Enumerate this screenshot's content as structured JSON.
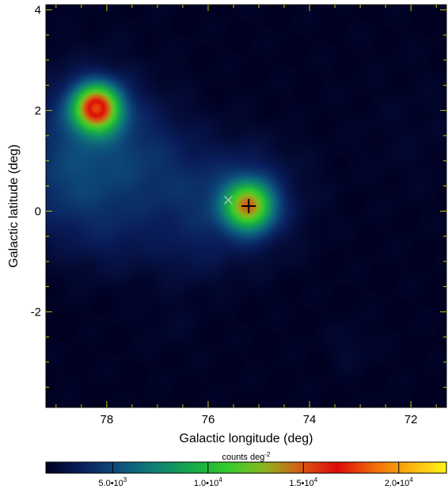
{
  "chart_data": {
    "type": "heatmap",
    "xlabel": "Galactic longitude (deg)",
    "ylabel": "Galactic latitude (deg)",
    "x_ticks": [
      78,
      76,
      74,
      72
    ],
    "x_tick_labels": [
      "78",
      "76",
      "74",
      "72"
    ],
    "y_ticks": [
      4,
      2,
      0,
      -2
    ],
    "y_tick_labels": [
      "4",
      "2",
      "0",
      "-2"
    ],
    "xlim": [
      79.2,
      71.3
    ],
    "ylim": [
      -3.9,
      4.1
    ],
    "grid": false,
    "colorbar": {
      "label": "counts deg",
      "label_exponent": "-2",
      "range": [
        1500,
        22500
      ],
      "ticks": [
        5000,
        10000,
        15000,
        20000
      ],
      "tick_labels": [
        {
          "mantissa": "5.0•10",
          "exponent": "3"
        },
        {
          "mantissa": "1.0•10",
          "exponent": "4"
        },
        {
          "mantissa": "1.5•10",
          "exponent": "4"
        },
        {
          "mantissa": "2.0•10",
          "exponent": "4"
        }
      ],
      "colors": [
        "#000020",
        "#0a1f5e",
        "#0d4f7d",
        "#0f8076",
        "#16a84a",
        "#35cb2d",
        "#8ab51e",
        "#d85a12",
        "#dc0a0a",
        "#f06a08",
        "#fbb20e",
        "#fff51a"
      ]
    },
    "sources": [
      {
        "l": 78.2,
        "b": 2.05,
        "peak": 19000
      },
      {
        "l": 75.2,
        "b": 0.1,
        "peak": 15500
      }
    ],
    "markers": [
      {
        "type": "plus",
        "l": 75.2,
        "b": 0.1,
        "color": "#000000"
      },
      {
        "type": "cross",
        "l": 75.6,
        "b": 0.22,
        "color": "#b8c0c8"
      }
    ]
  }
}
